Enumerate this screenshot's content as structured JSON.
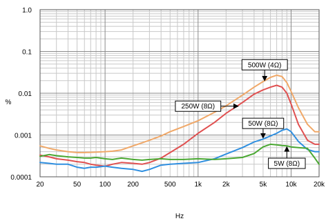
{
  "chart_data": {
    "type": "line",
    "xlabel": "Hz",
    "ylabel": "%",
    "xscale": "log",
    "yscale": "log",
    "xlim": [
      20,
      20000
    ],
    "ylim": [
      0.0001,
      1.0
    ],
    "grid": true,
    "x_ticks": [
      {
        "v": 20,
        "label": "20"
      },
      {
        "v": 50,
        "label": "50"
      },
      {
        "v": 100,
        "label": "100"
      },
      {
        "v": 200,
        "label": "200"
      },
      {
        "v": 500,
        "label": "500"
      },
      {
        "v": 1000,
        "label": "1k"
      },
      {
        "v": 2000,
        "label": "2k"
      },
      {
        "v": 5000,
        "label": "5k"
      },
      {
        "v": 10000,
        "label": "10k"
      },
      {
        "v": 20000,
        "label": "20k"
      }
    ],
    "y_ticks": [
      {
        "v": 1.0,
        "label": "1.0"
      },
      {
        "v": 0.1,
        "label": "0.1"
      },
      {
        "v": 0.01,
        "label": "0.01"
      },
      {
        "v": 0.001,
        "label": "0.001"
      },
      {
        "v": 0.0001,
        "label": "0.0001"
      }
    ],
    "series": [
      {
        "name": "500W (4Ω)",
        "color": "#f0a868",
        "x": [
          20,
          25,
          30,
          40,
          50,
          60,
          80,
          100,
          120,
          150,
          200,
          250,
          300,
          400,
          500,
          700,
          1000,
          1500,
          2000,
          3000,
          4000,
          5000,
          6000,
          7000,
          8000,
          9000,
          10000,
          12000,
          15000,
          18000,
          20000
        ],
        "y": [
          0.00055,
          0.00048,
          0.00044,
          0.0004,
          0.00038,
          0.00038,
          0.00039,
          0.0004,
          0.00041,
          0.00044,
          0.00055,
          0.00065,
          0.00075,
          0.00095,
          0.0012,
          0.0016,
          0.0022,
          0.0035,
          0.005,
          0.009,
          0.014,
          0.019,
          0.024,
          0.027,
          0.025,
          0.018,
          0.011,
          0.0045,
          0.0018,
          0.0012,
          0.0012
        ]
      },
      {
        "name": "250W (8Ω)",
        "color": "#e05050",
        "x": [
          20,
          25,
          30,
          40,
          50,
          60,
          70,
          80,
          100,
          120,
          150,
          200,
          250,
          300,
          400,
          500,
          700,
          1000,
          1500,
          2000,
          3000,
          4000,
          5000,
          6000,
          7000,
          8000,
          9000,
          10000,
          12000,
          15000,
          18000,
          20000
        ],
        "y": [
          0.00033,
          0.0003,
          0.00027,
          0.00025,
          0.00023,
          0.00022,
          0.0002,
          0.00019,
          0.00018,
          0.0002,
          0.00022,
          0.00021,
          0.0002,
          0.00022,
          0.00028,
          0.00038,
          0.0006,
          0.0011,
          0.002,
          0.0033,
          0.006,
          0.0095,
          0.012,
          0.014,
          0.0155,
          0.014,
          0.01,
          0.0055,
          0.0018,
          0.00075,
          0.0006,
          0.0006
        ]
      },
      {
        "name": "50W (8Ω)",
        "color": "#2f8fe0",
        "x": [
          20,
          25,
          30,
          40,
          50,
          60,
          70,
          80,
          100,
          120,
          150,
          200,
          250,
          300,
          400,
          500,
          700,
          1000,
          1500,
          2000,
          3000,
          4000,
          5000,
          6000,
          7000,
          8000,
          9000,
          10000,
          12000,
          15000,
          18000,
          20000
        ],
        "y": [
          0.00022,
          0.00021,
          0.0002,
          0.0002,
          0.00017,
          0.00016,
          0.00017,
          0.00017,
          0.00018,
          0.00017,
          0.00016,
          0.00015,
          0.000135,
          0.00015,
          0.00019,
          0.0002,
          0.00021,
          0.00022,
          0.00027,
          0.00035,
          0.0005,
          0.00068,
          0.0008,
          0.00095,
          0.0011,
          0.0013,
          0.0014,
          0.0012,
          0.0007,
          0.00045,
          0.0004,
          0.0004
        ]
      },
      {
        "name": "5W (8Ω)",
        "color": "#4aa832",
        "x": [
          20,
          25,
          30,
          40,
          50,
          60,
          70,
          80,
          100,
          120,
          150,
          200,
          250,
          300,
          400,
          500,
          700,
          1000,
          1500,
          2000,
          3000,
          4000,
          5000,
          6000,
          7000,
          8000,
          9000,
          10000,
          12000,
          15000,
          18000,
          20000
        ],
        "y": [
          0.00031,
          0.00034,
          0.00032,
          0.0003,
          0.00029,
          0.00028,
          0.00028,
          0.00029,
          0.00027,
          0.00026,
          0.00028,
          0.00026,
          0.00025,
          0.00026,
          0.00027,
          0.00026,
          0.00026,
          0.00027,
          0.00026,
          0.00027,
          0.00029,
          0.00036,
          0.00052,
          0.0006,
          0.00058,
          0.00056,
          0.00055,
          0.00052,
          0.0005,
          0.00048,
          0.00028,
          0.0002
        ]
      }
    ],
    "annotations": [
      {
        "text": "500W (4Ω)",
        "box_x": 5200,
        "box_y": 0.048,
        "arrow_to_x": 5200,
        "arrow_to_y": 0.02
      },
      {
        "text": "250W (8Ω)",
        "box_x": 1000,
        "box_y": 0.0049,
        "arrow_to_x": 2700,
        "arrow_to_y": 0.0049
      },
      {
        "text": "50W (8Ω)",
        "box_x": 5000,
        "box_y": 0.0019,
        "arrow_to_x": 5000,
        "arrow_to_y": 0.00085
      },
      {
        "text": "5W (8Ω)",
        "box_x": 9000,
        "box_y": 0.00021,
        "arrow_to_x": 9000,
        "arrow_to_y": 0.00052
      }
    ]
  }
}
